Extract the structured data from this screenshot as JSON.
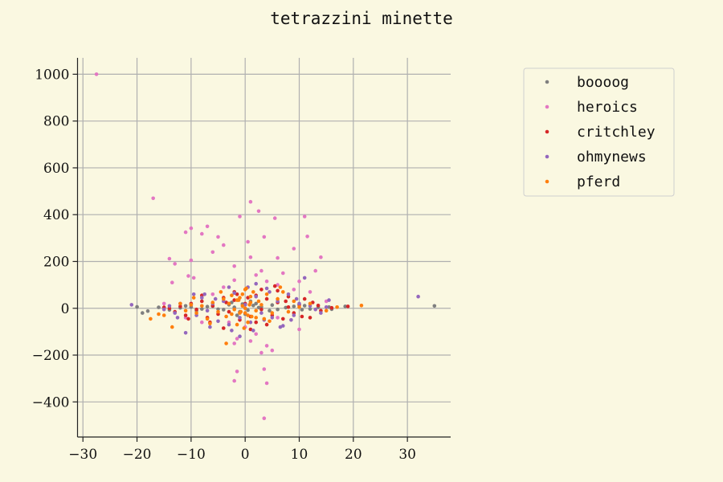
{
  "chart_data": {
    "type": "scatter",
    "title": "tetrazzini minette",
    "xlabel": "",
    "ylabel": "",
    "xlim": [
      -31,
      38
    ],
    "ylim": [
      -550,
      1070
    ],
    "xticks": [
      -30,
      -20,
      -10,
      0,
      10,
      20,
      30
    ],
    "yticks": [
      -400,
      -200,
      0,
      200,
      400,
      600,
      800,
      1000
    ],
    "xtick_labels": [
      "−30",
      "−20",
      "−10",
      "0",
      "10",
      "20",
      "30"
    ],
    "ytick_labels": [
      "−400",
      "−200",
      "0",
      "200",
      "400",
      "600",
      "800",
      "1000"
    ],
    "grid": true,
    "legend_position": "upper right, outside plot",
    "series": [
      {
        "name": "boooog",
        "color": "#7f7f7f",
        "points": [
          [
            35,
            10
          ],
          [
            18.5,
            8
          ],
          [
            15.5,
            5
          ],
          [
            12,
            -3
          ],
          [
            9,
            8
          ],
          [
            6,
            -5
          ],
          [
            3,
            6
          ],
          [
            0.5,
            -8
          ],
          [
            -2,
            4
          ],
          [
            -4,
            -6
          ],
          [
            -6,
            9
          ],
          [
            -8,
            -3
          ],
          [
            -10,
            5
          ],
          [
            -12,
            2
          ],
          [
            -14,
            -7
          ],
          [
            -16,
            4
          ],
          [
            -18,
            -12
          ],
          [
            -19,
            -20
          ],
          [
            -20,
            6
          ],
          [
            1.5,
            12
          ],
          [
            4.5,
            -10
          ],
          [
            7.5,
            3
          ],
          [
            10.5,
            -6
          ],
          [
            13.5,
            4
          ],
          [
            -1,
            -15
          ],
          [
            -3,
            15
          ],
          [
            -5,
            -4
          ],
          [
            -7,
            7
          ],
          [
            2.5,
            3
          ],
          [
            -0.5,
            18
          ],
          [
            0,
            -25
          ],
          [
            1,
            30
          ],
          [
            -1.5,
            -30
          ],
          [
            2,
            20
          ],
          [
            -2.5,
            25
          ],
          [
            5,
            14
          ],
          [
            -9,
            -10
          ],
          [
            11,
            11
          ],
          [
            16,
            -4
          ],
          [
            -11,
            10
          ]
        ]
      },
      {
        "name": "heroics",
        "color": "#e377c2",
        "points": [
          [
            -27.5,
            1000
          ],
          [
            -17,
            470
          ],
          [
            1,
            455
          ],
          [
            2.5,
            415
          ],
          [
            -1,
            392
          ],
          [
            5.5,
            385
          ],
          [
            11,
            392
          ],
          [
            -7,
            350
          ],
          [
            -8,
            318
          ],
          [
            -10,
            342
          ],
          [
            -11,
            325
          ],
          [
            -5,
            305
          ],
          [
            -4,
            270
          ],
          [
            0.5,
            284
          ],
          [
            1,
            218
          ],
          [
            3.5,
            305
          ],
          [
            9,
            255
          ],
          [
            11.5,
            307
          ],
          [
            -13,
            190
          ],
          [
            -14,
            212
          ],
          [
            -10,
            205
          ],
          [
            -6,
            240
          ],
          [
            6,
            215
          ],
          [
            14,
            218
          ],
          [
            -2,
            180
          ],
          [
            3,
            160
          ],
          [
            7,
            150
          ],
          [
            10,
            115
          ],
          [
            13,
            160
          ],
          [
            -13.5,
            110
          ],
          [
            -10.5,
            138
          ],
          [
            -9.5,
            130
          ],
          [
            -4,
            90
          ],
          [
            -2,
            120
          ],
          [
            2,
            142
          ],
          [
            4,
            115
          ],
          [
            6,
            100
          ],
          [
            9,
            80
          ],
          [
            12,
            70
          ],
          [
            -6,
            60
          ],
          [
            -3,
            -60
          ],
          [
            0,
            -80
          ],
          [
            2,
            -110
          ],
          [
            -1.5,
            -130
          ],
          [
            1,
            -140
          ],
          [
            -2,
            -150
          ],
          [
            3,
            -190
          ],
          [
            5,
            -180
          ],
          [
            4,
            -160
          ],
          [
            -1.5,
            -270
          ],
          [
            -2,
            -310
          ],
          [
            4,
            -320
          ],
          [
            3.5,
            -260
          ],
          [
            3.5,
            -470
          ],
          [
            10,
            -90
          ],
          [
            -8,
            -60
          ],
          [
            6,
            -40
          ],
          [
            -11,
            -40
          ],
          [
            15,
            30
          ],
          [
            -15,
            20
          ]
        ]
      },
      {
        "name": "critchley",
        "color": "#d62728",
        "points": [
          [
            19,
            8
          ],
          [
            16,
            2
          ],
          [
            14,
            -10
          ],
          [
            13.5,
            12
          ],
          [
            12,
            -40
          ],
          [
            10,
            15
          ],
          [
            9,
            -20
          ],
          [
            8,
            5
          ],
          [
            7,
            -45
          ],
          [
            6,
            25
          ],
          [
            5,
            -30
          ],
          [
            4,
            40
          ],
          [
            3,
            -5
          ],
          [
            2,
            55
          ],
          [
            1,
            -35
          ],
          [
            0,
            20
          ],
          [
            -1,
            -50
          ],
          [
            -2,
            35
          ],
          [
            -3,
            -15
          ],
          [
            -4,
            45
          ],
          [
            -5,
            -25
          ],
          [
            -6,
            10
          ],
          [
            -7,
            -40
          ],
          [
            -8,
            30
          ],
          [
            -9,
            -5
          ],
          [
            -10,
            20
          ],
          [
            -11,
            -30
          ],
          [
            -12,
            8
          ],
          [
            -13,
            -15
          ],
          [
            -14,
            0
          ],
          [
            -15,
            4
          ],
          [
            5.5,
            95
          ],
          [
            6,
            75
          ],
          [
            3,
            80
          ],
          [
            -2,
            70
          ],
          [
            1,
            -90
          ],
          [
            -4,
            -85
          ],
          [
            4,
            -70
          ],
          [
            8,
            50
          ],
          [
            -8,
            55
          ],
          [
            10.5,
            -35
          ],
          [
            12.5,
            25
          ],
          [
            -10.5,
            -45
          ],
          [
            2,
            -60
          ],
          [
            -1.5,
            60
          ],
          [
            7.5,
            30
          ],
          [
            -6.5,
            -60
          ],
          [
            0.5,
            45
          ],
          [
            -3.5,
            25
          ],
          [
            11,
            40
          ]
        ]
      },
      {
        "name": "ohmynews",
        "color": "#9467bd",
        "points": [
          [
            32,
            50
          ],
          [
            15.5,
            35
          ],
          [
            15,
            5
          ],
          [
            13,
            -5
          ],
          [
            11,
            130
          ],
          [
            10,
            20
          ],
          [
            9,
            -30
          ],
          [
            8,
            60
          ],
          [
            7,
            -75
          ],
          [
            6,
            30
          ],
          [
            5,
            -40
          ],
          [
            4,
            85
          ],
          [
            3,
            -20
          ],
          [
            2,
            50
          ],
          [
            1,
            -60
          ],
          [
            0,
            15
          ],
          [
            -1,
            -40
          ],
          [
            -2,
            65
          ],
          [
            -3,
            -70
          ],
          [
            -4,
            30
          ],
          [
            -5,
            -55
          ],
          [
            -6,
            20
          ],
          [
            -7,
            -10
          ],
          [
            -8,
            45
          ],
          [
            -9,
            -30
          ],
          [
            -10,
            15
          ],
          [
            -11,
            -105
          ],
          [
            -12,
            20
          ],
          [
            -13,
            -20
          ],
          [
            -14,
            10
          ],
          [
            -15,
            -5
          ],
          [
            -21,
            15
          ],
          [
            -3,
            90
          ],
          [
            2,
            105
          ],
          [
            -1,
            -120
          ],
          [
            1.5,
            -95
          ],
          [
            6.5,
            -80
          ],
          [
            -6.5,
            -80
          ],
          [
            9.5,
            40
          ],
          [
            -9.5,
            60
          ],
          [
            12,
            10
          ],
          [
            -12.5,
            -40
          ],
          [
            0.5,
            90
          ],
          [
            -2.5,
            -95
          ],
          [
            4.5,
            70
          ],
          [
            8.5,
            -50
          ],
          [
            -5.5,
            40
          ],
          [
            3.5,
            -50
          ],
          [
            -7.5,
            60
          ],
          [
            14,
            -20
          ]
        ]
      },
      {
        "name": "pferd",
        "color": "#ff7f0e",
        "points": [
          [
            21.5,
            12
          ],
          [
            17,
            5
          ],
          [
            15,
            -10
          ],
          [
            12,
            20
          ],
          [
            10,
            5
          ],
          [
            8,
            -15
          ],
          [
            7,
            70
          ],
          [
            6,
            40
          ],
          [
            5,
            -20
          ],
          [
            4,
            60
          ],
          [
            3,
            15
          ],
          [
            2,
            -40
          ],
          [
            1,
            50
          ],
          [
            0.5,
            -30
          ],
          [
            0,
            80
          ],
          [
            -0.5,
            10
          ],
          [
            -1,
            -20
          ],
          [
            -1.5,
            35
          ],
          [
            -2,
            -5
          ],
          [
            -2.5,
            55
          ],
          [
            -3,
            20
          ],
          [
            -3.5,
            -35
          ],
          [
            -4,
            40
          ],
          [
            -5,
            -15
          ],
          [
            -6,
            25
          ],
          [
            -7,
            -45
          ],
          [
            -8,
            10
          ],
          [
            -9,
            -20
          ],
          [
            -10,
            15
          ],
          [
            -11,
            -10
          ],
          [
            -12,
            20
          ],
          [
            -13.5,
            -80
          ],
          [
            -15,
            -30
          ],
          [
            -16,
            -25
          ],
          [
            -17.5,
            -45
          ],
          [
            -3.5,
            -150
          ],
          [
            0,
            -20
          ],
          [
            1,
            25
          ],
          [
            -1,
            45
          ],
          [
            2,
            -10
          ],
          [
            0,
            0
          ],
          [
            -0.5,
            60
          ],
          [
            0.5,
            -60
          ],
          [
            1.5,
            70
          ],
          [
            -1.5,
            -70
          ],
          [
            2.5,
            30
          ],
          [
            -2.5,
            -25
          ],
          [
            3.5,
            -45
          ],
          [
            -4.5,
            70
          ],
          [
            4.5,
            -55
          ],
          [
            0.2,
            85
          ],
          [
            -0.2,
            -85
          ],
          [
            0.8,
            15
          ],
          [
            -0.8,
            -15
          ],
          [
            1.2,
            -35
          ],
          [
            -1.2,
            35
          ],
          [
            6.5,
            90
          ],
          [
            -6.5,
            -65
          ],
          [
            9,
            30
          ],
          [
            -9.5,
            45
          ]
        ]
      }
    ]
  }
}
